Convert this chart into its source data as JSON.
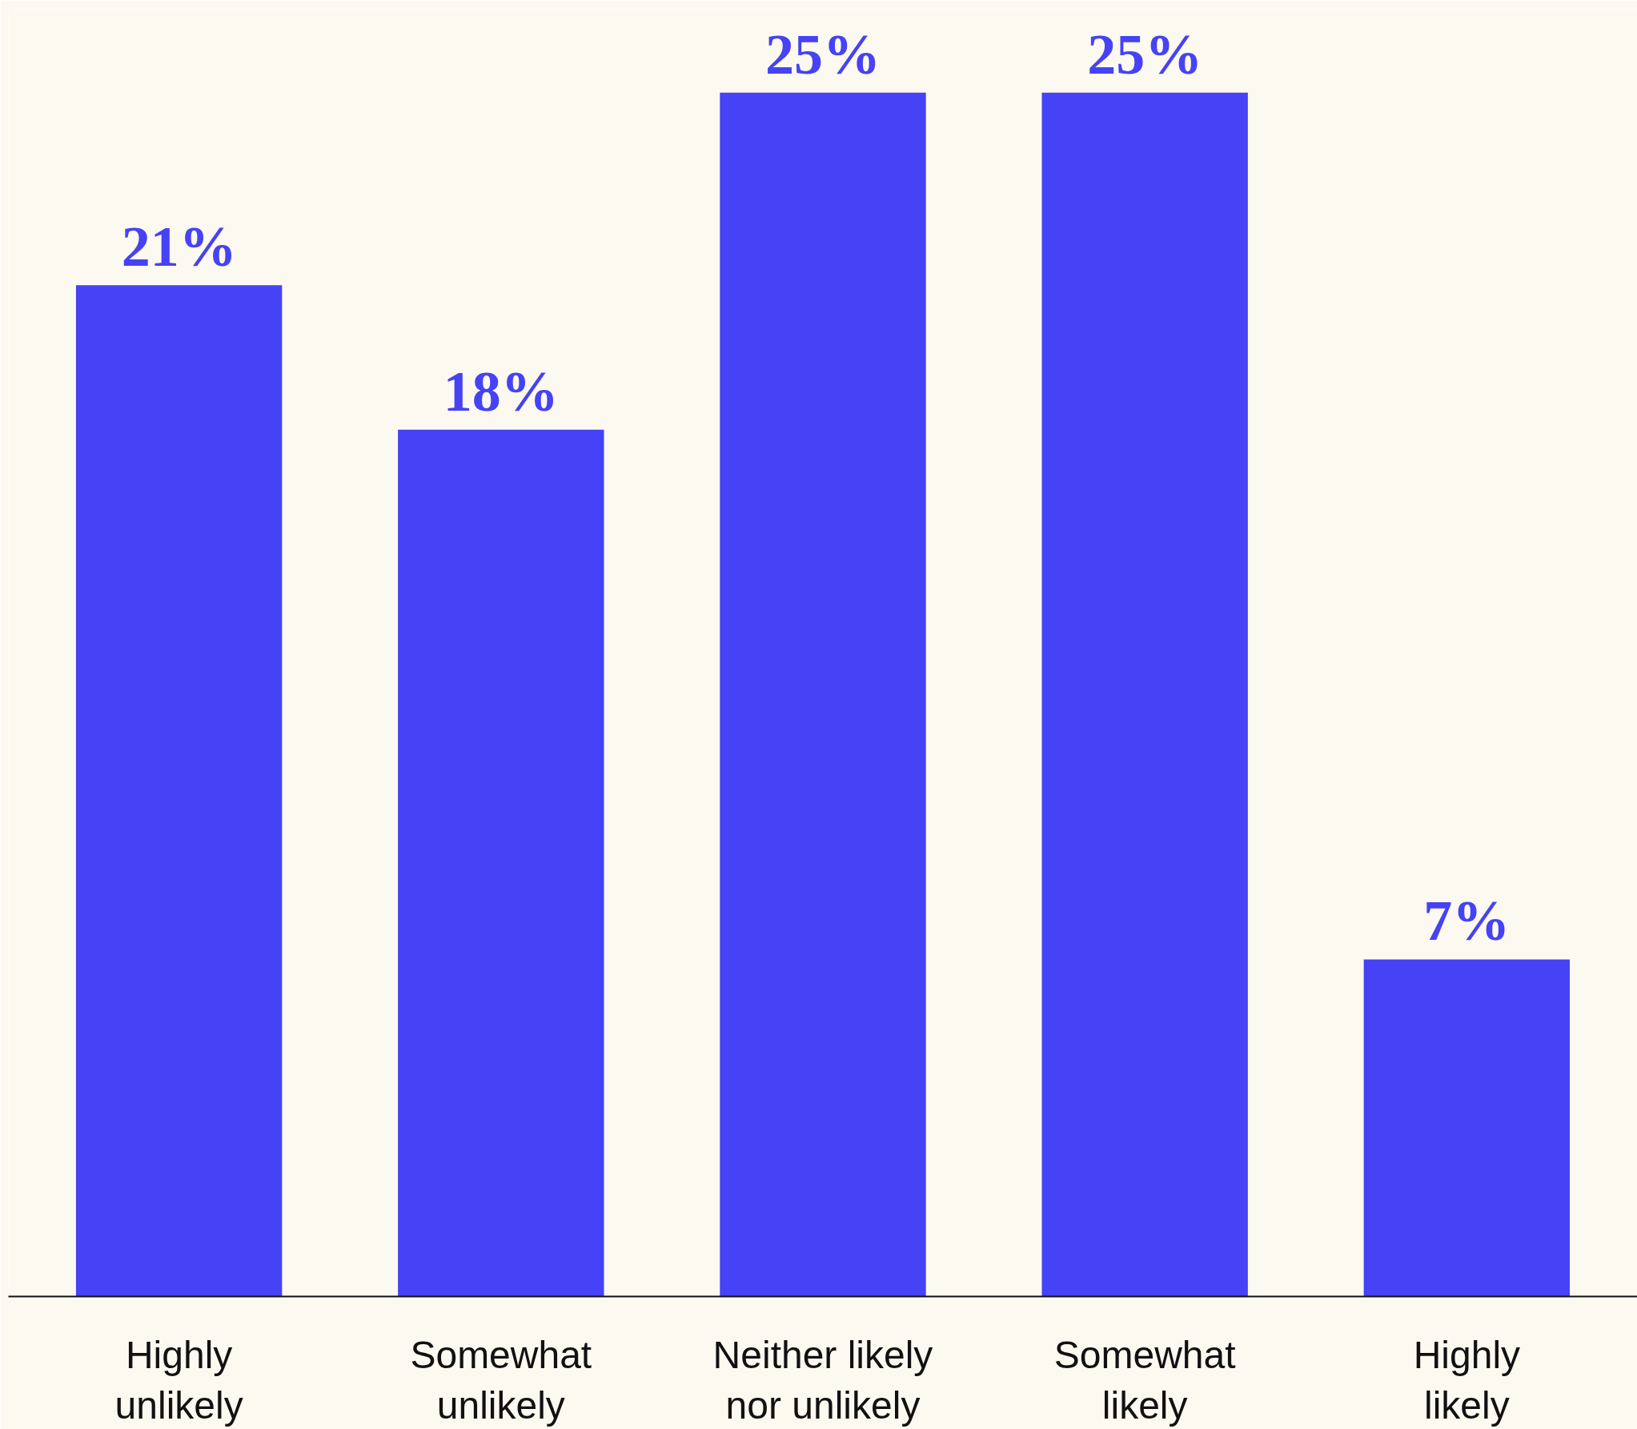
{
  "chart_data": {
    "type": "bar",
    "categories": [
      "Highly\nunlikely",
      "Somewhat\nunlikely",
      "Neither likely\nnor unlikely",
      "Somewhat\nlikely",
      "Highly\nlikely"
    ],
    "values": [
      21,
      18,
      25,
      25,
      7
    ],
    "value_labels": [
      "21%",
      "18%",
      "25%",
      "25%",
      "7%"
    ],
    "color": "#4642f5"
  }
}
